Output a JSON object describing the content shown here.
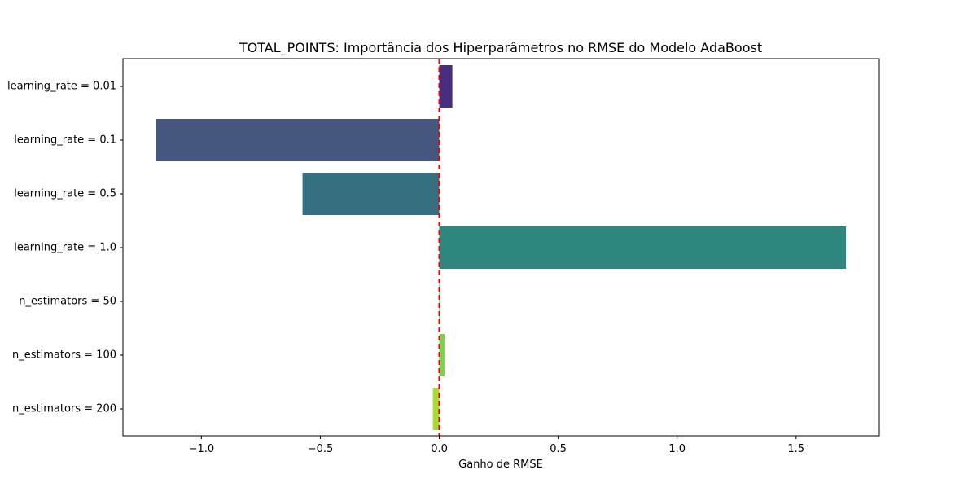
{
  "chart_data": {
    "type": "bar",
    "orientation": "horizontal",
    "title": "TOTAL_POINTS: Importância dos Hiperparâmetros no RMSE do Modelo AdaBoost",
    "xlabel": "Ganho de RMSE",
    "ylabel": "",
    "xlim": [
      -1.33,
      1.85
    ],
    "xticks": [
      {
        "value": -1.0,
        "label": "−1.0"
      },
      {
        "value": -0.5,
        "label": "−0.5"
      },
      {
        "value": 0.0,
        "label": "0.0"
      },
      {
        "value": 0.5,
        "label": "0.5"
      },
      {
        "value": 1.0,
        "label": "1.0"
      },
      {
        "value": 1.5,
        "label": "1.5"
      }
    ],
    "categories": [
      "learning_rate = 0.01",
      "learning_rate = 0.1",
      "learning_rate = 0.5",
      "learning_rate = 1.0",
      "n_estimators = 50",
      "n_estimators = 100",
      "n_estimators = 200"
    ],
    "values": [
      0.055,
      -1.19,
      -0.575,
      1.71,
      0.004,
      0.022,
      -0.027
    ],
    "colors": [
      "#472f7d",
      "#45577f",
      "#366f80",
      "#2d877e",
      "#3bb474",
      "#7cd250",
      "#a8db34"
    ],
    "reference_line": {
      "x": 0.0,
      "color": "#e00000",
      "style": "dashed"
    },
    "grid": false,
    "legend": "none"
  }
}
